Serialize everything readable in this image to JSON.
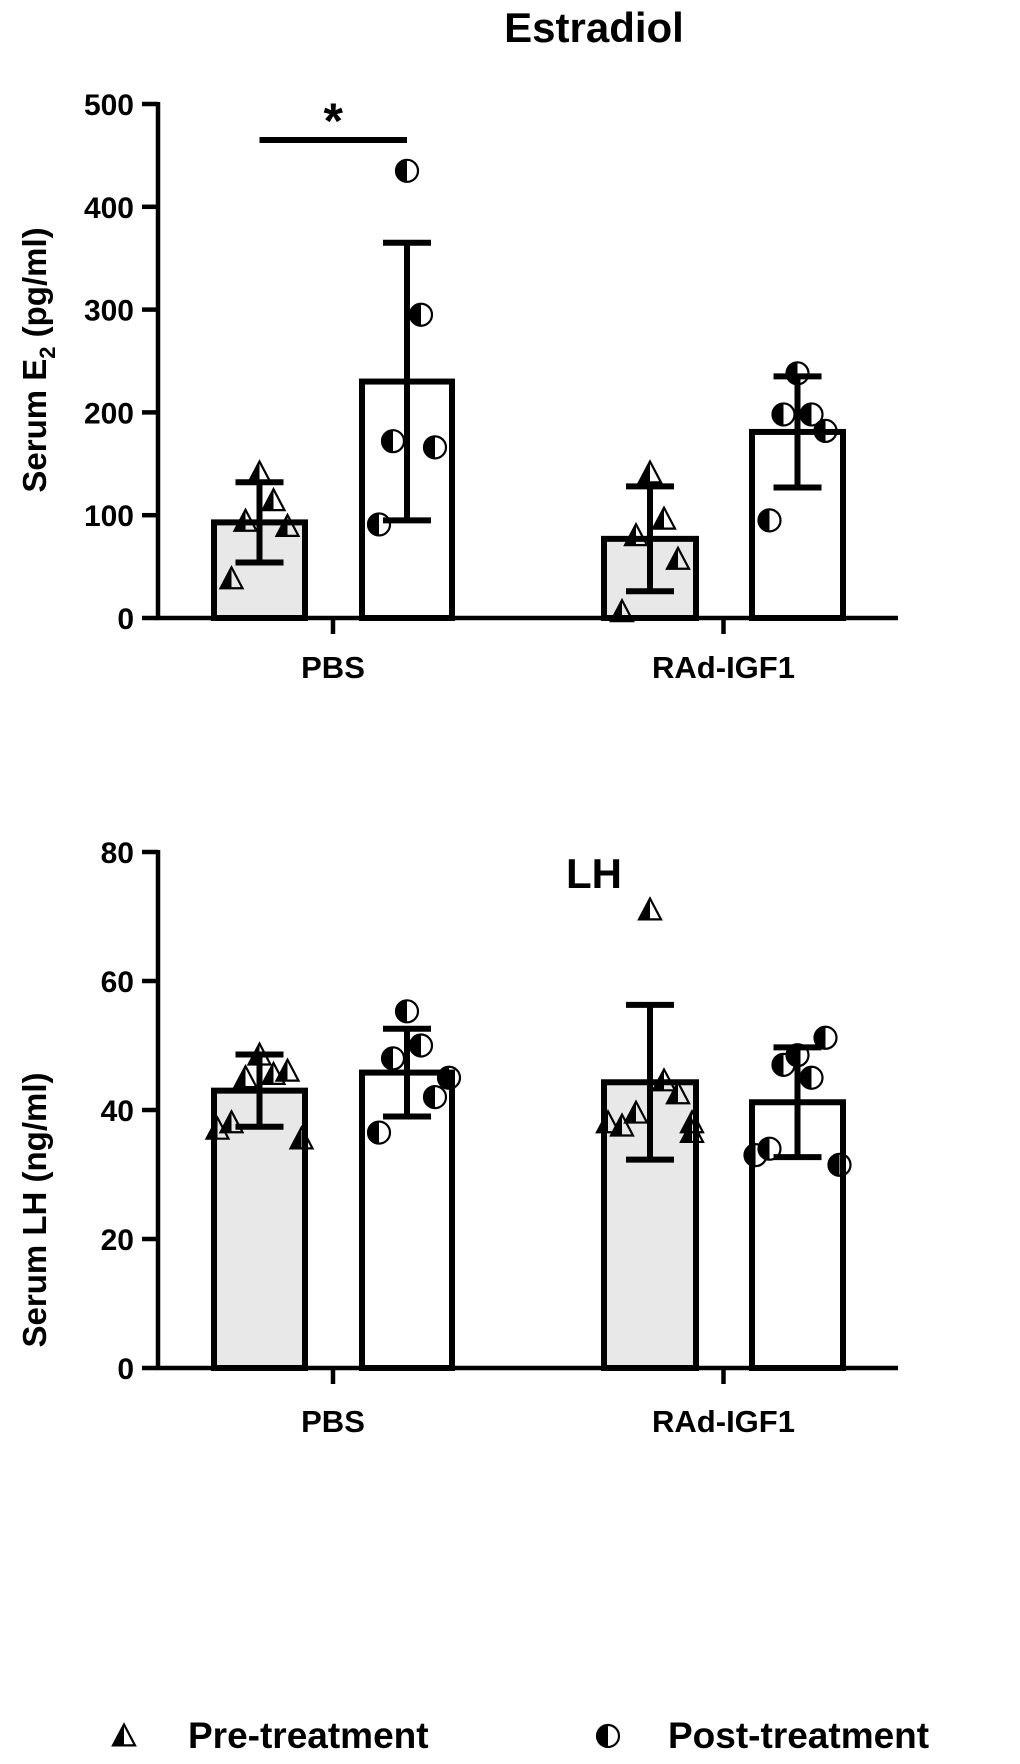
{
  "chart_data": [
    {
      "type": "bar",
      "title": "Estradiol",
      "xlabel": "",
      "ylabel": "Serum E",
      "ylabel_subscript": "2",
      "ylabel_units": " (pg/ml)",
      "ylim": [
        0,
        500
      ],
      "yticks": [
        0,
        100,
        200,
        300,
        400,
        500
      ],
      "categories": [
        "PBS",
        "RAd-IGF1"
      ],
      "series": [
        {
          "name": "Pre-treatment",
          "values": [
            93,
            77
          ],
          "sd": [
            39,
            51
          ],
          "points": [
            [
              141,
              114,
              94,
              89,
              38
            ],
            [
              141,
              96,
              80,
              57,
              6
            ]
          ]
        },
        {
          "name": "Post-treatment",
          "values": [
            230,
            181
          ],
          "sd": [
            135,
            54
          ],
          "points": [
            [
              435,
              295,
              172,
              166,
              91
            ],
            [
              238,
              198,
              198,
              182,
              95
            ]
          ]
        }
      ],
      "annotations": [
        {
          "text": "*",
          "between": "PBS Pre-treatment vs PBS Post-treatment"
        }
      ]
    },
    {
      "type": "bar",
      "title": "LH",
      "xlabel": "",
      "ylabel": "Serum LH (ng/ml)",
      "ylim": [
        0,
        80
      ],
      "yticks": [
        0,
        20,
        40,
        60,
        80
      ],
      "categories": [
        "PBS",
        "RAd-IGF1"
      ],
      "series": [
        {
          "name": "Pre-treatment",
          "values": [
            43,
            44.3
          ],
          "sd": [
            5.6,
            12
          ],
          "points": [
            [
              48.5,
              45.5,
              45,
              46,
              38,
              35.5,
              37
            ],
            [
              71,
              44.5,
              39.5,
              42.5,
              37.5,
              36.5,
              38,
              38
            ]
          ]
        },
        {
          "name": "Post-treatment",
          "values": [
            45.8,
            41.2
          ],
          "sd": [
            6.8,
            8.5
          ],
          "points": [
            [
              55.3,
              50,
              48,
              42,
              36.5,
              45
            ],
            [
              48.5,
              45,
              47,
              51.2,
              34,
              31.5,
              33
            ]
          ]
        }
      ]
    }
  ],
  "legend": {
    "position": "bottom",
    "items": [
      {
        "label": "Pre-treatment",
        "marker": "half-filled-triangle-icon"
      },
      {
        "label": "Post-treatment",
        "marker": "half-filled-circle-icon"
      }
    ]
  },
  "colors": {
    "pre_bar_fill": "#e8e8e8",
    "post_bar_fill": "#ffffff",
    "stroke": "#000000"
  }
}
